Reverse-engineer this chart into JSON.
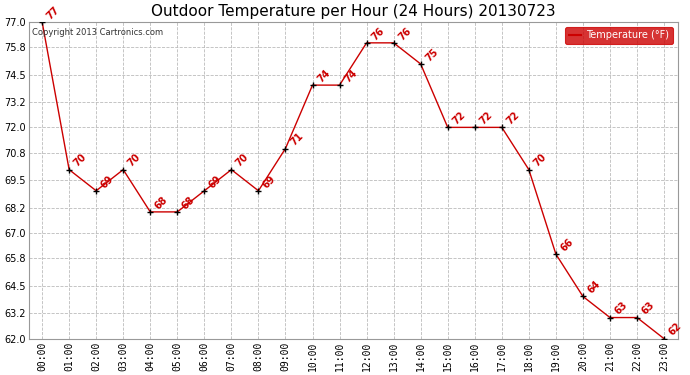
{
  "title": "Outdoor Temperature per Hour (24 Hours) 20130723",
  "copyright": "Copyright 2013 Cartronics.com",
  "legend_label": "Temperature (°F)",
  "hours": [
    "00:00",
    "01:00",
    "02:00",
    "03:00",
    "04:00",
    "05:00",
    "06:00",
    "07:00",
    "08:00",
    "09:00",
    "10:00",
    "11:00",
    "12:00",
    "13:00",
    "14:00",
    "15:00",
    "16:00",
    "17:00",
    "18:00",
    "19:00",
    "20:00",
    "21:00",
    "22:00",
    "23:00"
  ],
  "temps": [
    77,
    70,
    69,
    70,
    68,
    68,
    69,
    70,
    69,
    71,
    74,
    74,
    76,
    76,
    75,
    72,
    72,
    72,
    70,
    66,
    64,
    63,
    63,
    62
  ],
  "line_color": "#cc0000",
  "marker_color": "#000000",
  "background_color": "#ffffff",
  "grid_color": "#bbbbbb",
  "ylim_min": 62.0,
  "ylim_max": 77.0,
  "yticks": [
    62.0,
    63.2,
    64.5,
    65.8,
    67.0,
    68.2,
    69.5,
    70.8,
    72.0,
    73.2,
    74.5,
    75.8,
    77.0
  ],
  "label_color": "#cc0000",
  "label_fontsize": 7,
  "title_fontsize": 11,
  "copyright_fontsize": 6,
  "tick_fontsize": 7,
  "legend_bg": "#cc0000",
  "legend_text_color": "#ffffff"
}
